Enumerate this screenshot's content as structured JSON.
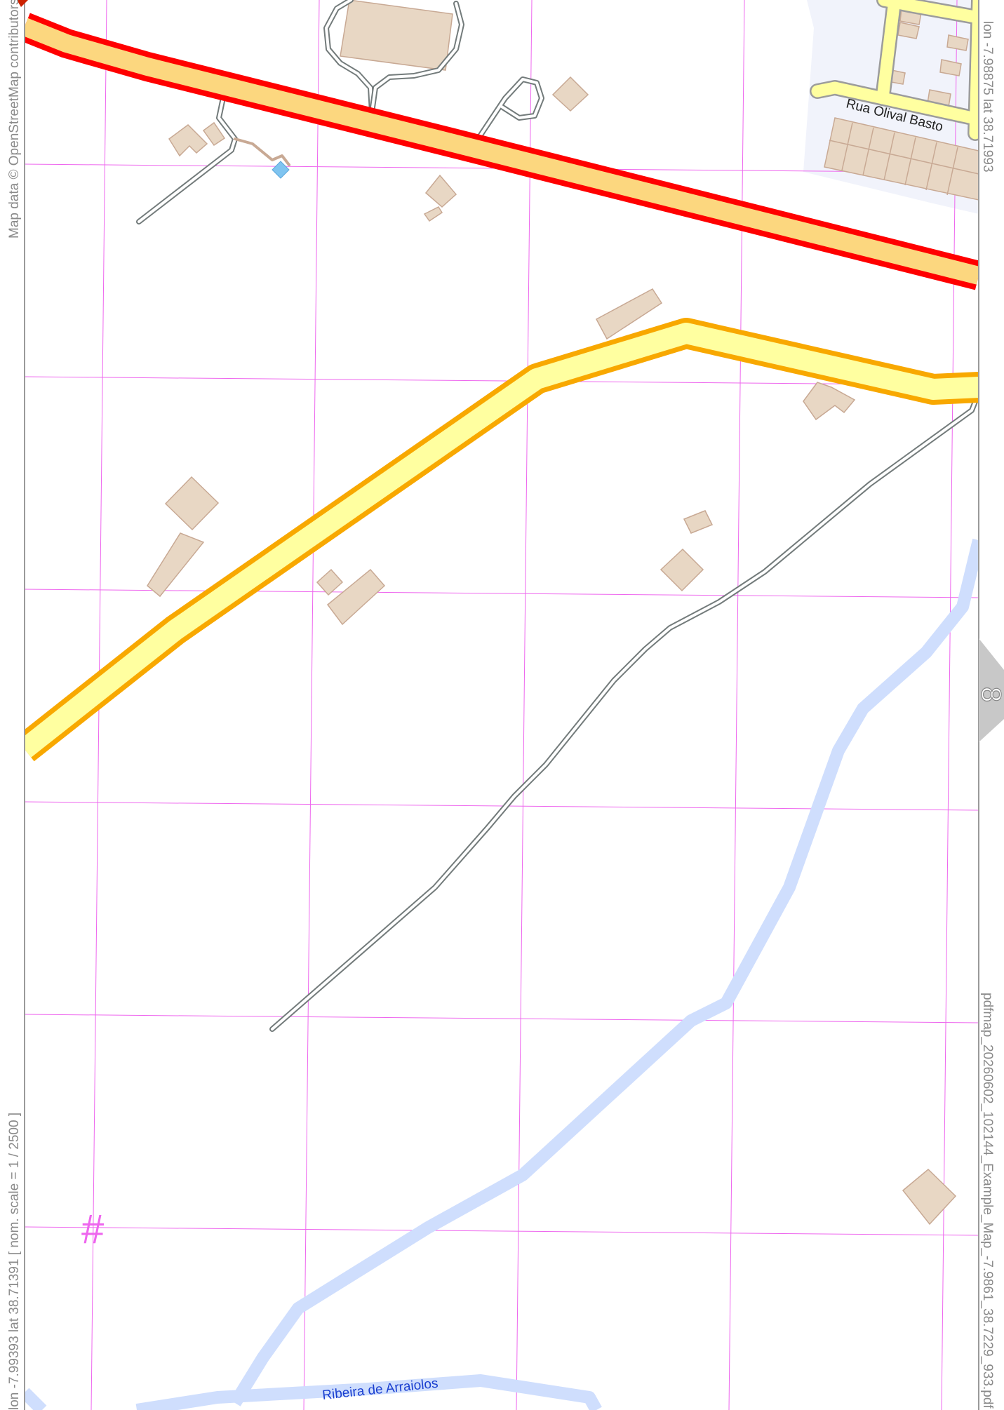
{
  "map": {
    "attribution": "Map data © OpenStreetMap contributors",
    "corner_top_right": "lon -7.98875 lat 38.71993",
    "corner_bottom_left": "lon -7.99393 lat 38.71391 [ nom. scale = 1 / 2500 ]",
    "filename": "pdfmap_20260602_102144_Example_Map_-7.9861_38.7229_933.pdf",
    "page_number": "8",
    "grid_marker": "#",
    "labels": {
      "street": "Rua Olival Basto",
      "stream": "Ribeira de Arraiolos"
    },
    "colors": {
      "primary_road": "#ff0000",
      "primary_road_fill": "#fcd77f",
      "secondary_road": "#f8a800",
      "secondary_road_fill": "#ffffa0",
      "track": "#737b7b",
      "building": "#e8d7c4",
      "building_outline": "#c8a994",
      "water": "#cfdefd",
      "grid": "#ee66ee",
      "residential": "#f1f3fb"
    },
    "icons": {
      "page_tab": "page-tab-icon",
      "pool": "pool-icon"
    }
  }
}
